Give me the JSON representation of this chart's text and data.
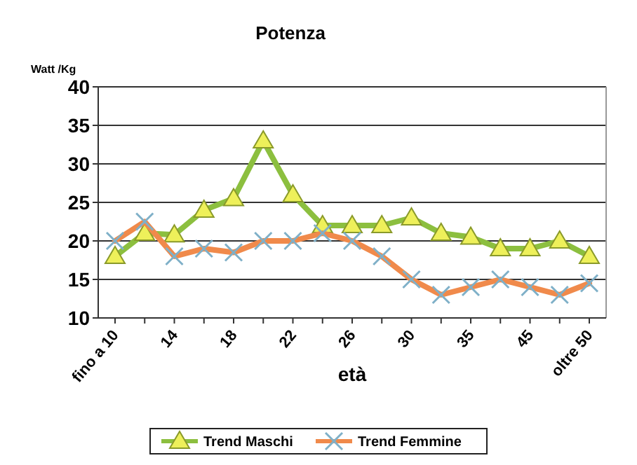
{
  "chart_data": {
    "type": "line",
    "title": "Potenza",
    "xlabel": "età",
    "ylabel": "Watt /Kg",
    "categories": [
      "fino a 10",
      null,
      "14",
      null,
      "18",
      null,
      "22",
      null,
      "26",
      null,
      "30",
      null,
      "35",
      null,
      "45",
      null,
      "oltre 50"
    ],
    "series": [
      {
        "name": "Trend Maschi",
        "color": "#8cbf3f",
        "marker": "triangle",
        "values": [
          18,
          21,
          20.8,
          24,
          25.5,
          33,
          26,
          22,
          22,
          22,
          23,
          21,
          20.5,
          19,
          19,
          20,
          18
        ]
      },
      {
        "name": "Trend Femmine",
        "color": "#f08a4b",
        "marker": "cross",
        "values": [
          20,
          22.5,
          18,
          19,
          18.5,
          20,
          20,
          21,
          20,
          18,
          15,
          13,
          14,
          15,
          14,
          13,
          14.5
        ]
      }
    ],
    "ylim": [
      10,
      40
    ],
    "yticks": [
      10,
      15,
      20,
      25,
      30,
      35,
      40
    ],
    "grid": "y",
    "legend": "bottom"
  }
}
